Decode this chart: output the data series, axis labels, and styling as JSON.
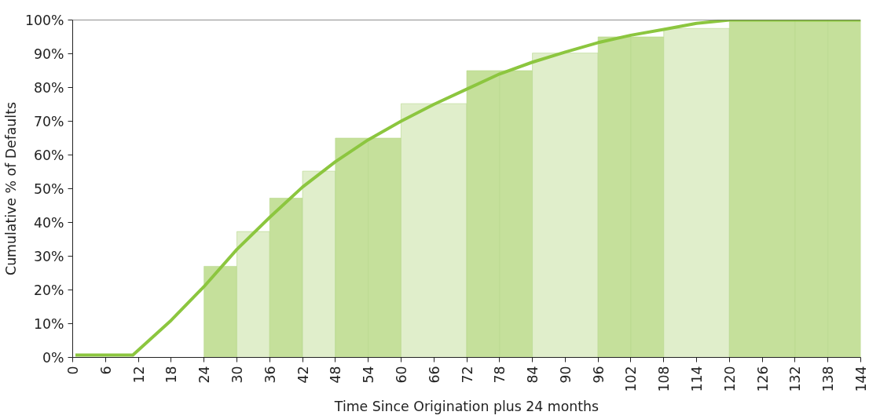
{
  "chart_data": {
    "type": "histogram",
    "xlabel": "Time Since Origination plus 24 months",
    "ylabel": "Cumulative % of Defaults",
    "bins": [
      24,
      30,
      36,
      42,
      48,
      54,
      60,
      72,
      78,
      84,
      96,
      102,
      108,
      120,
      132,
      138,
      144
    ],
    "values": [
      27,
      37.3,
      47.2,
      55.2,
      65,
      65,
      75.2,
      85,
      85,
      90.2,
      95,
      95,
      97.5,
      100,
      100,
      100
    ],
    "colors": [
      "#c5e09b",
      "#e0eecb",
      "#c5e09b",
      "#e0eecb",
      "#c5e09b",
      "#c5e09b",
      "#e0eecb",
      "#c5e09b",
      "#c5e09b",
      "#e0eecb",
      "#c5e09b",
      "#c5e09b",
      "#e0eecb",
      "#c5e09b",
      "#c5e09b",
      "#c5e09b"
    ],
    "series": [
      {
        "type": "line",
        "color": "#8cc63f",
        "x": [
          0.5,
          11,
          18,
          24,
          30,
          36,
          42,
          48,
          54,
          60,
          66,
          72,
          78,
          84,
          90,
          96,
          102,
          108,
          114,
          120,
          144
        ],
        "values": [
          0.7,
          0.7,
          11,
          21,
          32,
          41.5,
          50.5,
          58,
          64.5,
          70,
          75,
          79.5,
          84,
          87.5,
          90.5,
          93.3,
          95.5,
          97.2,
          99,
          100,
          100
        ]
      }
    ],
    "xlim": [
      0,
      144
    ],
    "xticks": [
      0,
      6,
      12,
      18,
      24,
      30,
      36,
      42,
      48,
      54,
      60,
      66,
      72,
      78,
      84,
      90,
      96,
      102,
      108,
      114,
      120,
      126,
      132,
      138,
      144
    ],
    "ylim": [
      0,
      100
    ],
    "yticks": [
      {
        "value": 0,
        "label": "0%"
      },
      {
        "value": 10,
        "label": "10%"
      },
      {
        "value": 20,
        "label": "20%"
      },
      {
        "value": 30,
        "label": "30%"
      },
      {
        "value": 40,
        "label": "40%"
      },
      {
        "value": 50,
        "label": "50%"
      },
      {
        "value": 60,
        "label": "60%"
      },
      {
        "value": 70,
        "label": "70%"
      },
      {
        "value": 80,
        "label": "80%"
      },
      {
        "value": 90,
        "label": "90%"
      },
      {
        "value": 100,
        "label": "100%"
      }
    ]
  }
}
